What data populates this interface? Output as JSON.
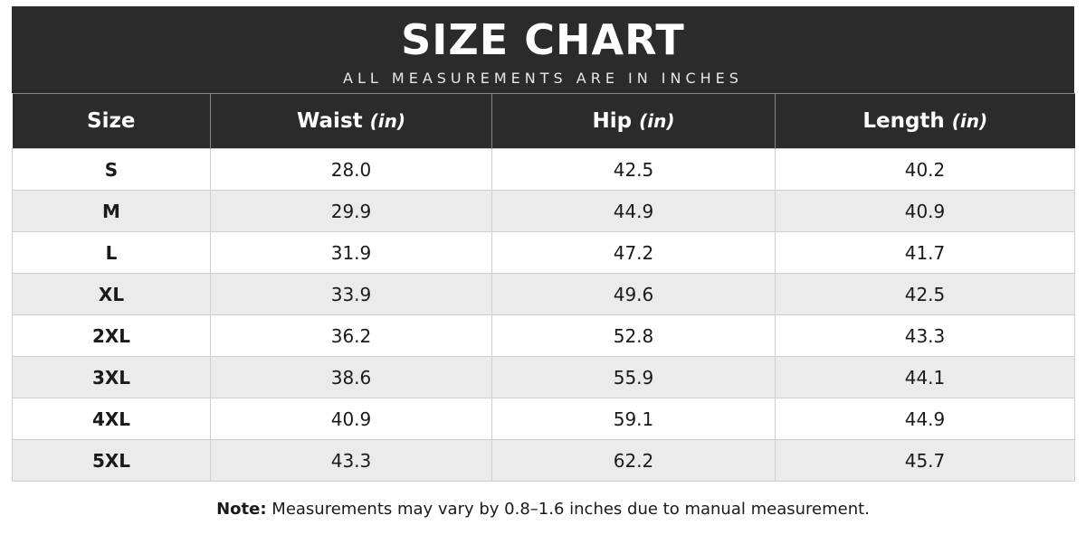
{
  "header": {
    "title": "SIZE CHART",
    "subtitle": "ALL MEASUREMENTS ARE IN INCHES"
  },
  "table": {
    "columns": [
      {
        "name": "Size"
      },
      {
        "name": "Waist",
        "unit": "(in)"
      },
      {
        "name": "Hip",
        "unit": "(in)"
      },
      {
        "name": "Length",
        "unit": "(in)"
      }
    ],
    "rows": [
      [
        "S",
        "28.0",
        "42.5",
        "40.2"
      ],
      [
        "M",
        "29.9",
        "44.9",
        "40.9"
      ],
      [
        "L",
        "31.9",
        "47.2",
        "41.7"
      ],
      [
        "XL",
        "33.9",
        "49.6",
        "42.5"
      ],
      [
        "2XL",
        "36.2",
        "52.8",
        "43.3"
      ],
      [
        "3XL",
        "38.6",
        "55.9",
        "44.1"
      ],
      [
        "4XL",
        "40.9",
        "59.1",
        "44.9"
      ],
      [
        "5XL",
        "43.3",
        "62.2",
        "45.7"
      ]
    ]
  },
  "note": {
    "label": "Note:",
    "text": "Measurements may vary by 0.8–1.6 inches due to manual measurement."
  }
}
